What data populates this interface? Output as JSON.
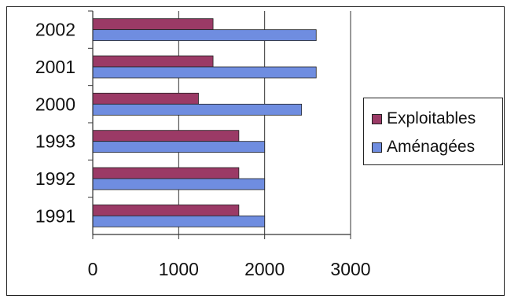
{
  "chart_data": {
    "type": "bar",
    "orientation": "horizontal",
    "categories": [
      "1991",
      "1992",
      "1993",
      "2000",
      "2001",
      "2002"
    ],
    "series": [
      {
        "name": "Exploitables",
        "color": "#9b3a66",
        "values": [
          1700,
          1700,
          1700,
          1230,
          1400,
          1400
        ]
      },
      {
        "name": "Aménagées",
        "color": "#6f8de0",
        "values": [
          2000,
          2000,
          2000,
          2430,
          2600,
          2600
        ]
      }
    ],
    "xlim": [
      0,
      3000
    ],
    "xticks": [
      "0",
      "1000",
      "2000",
      "3000"
    ],
    "title": "",
    "xlabel": "",
    "ylabel": "",
    "grid": "vertical",
    "legend_position": "right"
  }
}
